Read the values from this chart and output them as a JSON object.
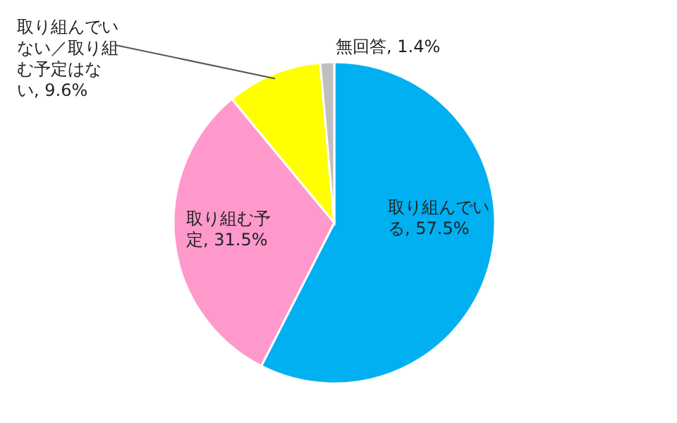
{
  "chart_data": {
    "type": "pie",
    "categories": [
      "取り組んでいる",
      "取り組む予定",
      "取り組んでいない／取り組む予定はない",
      "無回答"
    ],
    "values": [
      57.5,
      31.5,
      9.6,
      1.4
    ],
    "value_labels": [
      "57.5%",
      "31.5%",
      "9.6%",
      "1.4%"
    ],
    "colors": [
      "#00b0f0",
      "#ff99cc",
      "#ffff00",
      "#bfbfbf"
    ]
  }
}
